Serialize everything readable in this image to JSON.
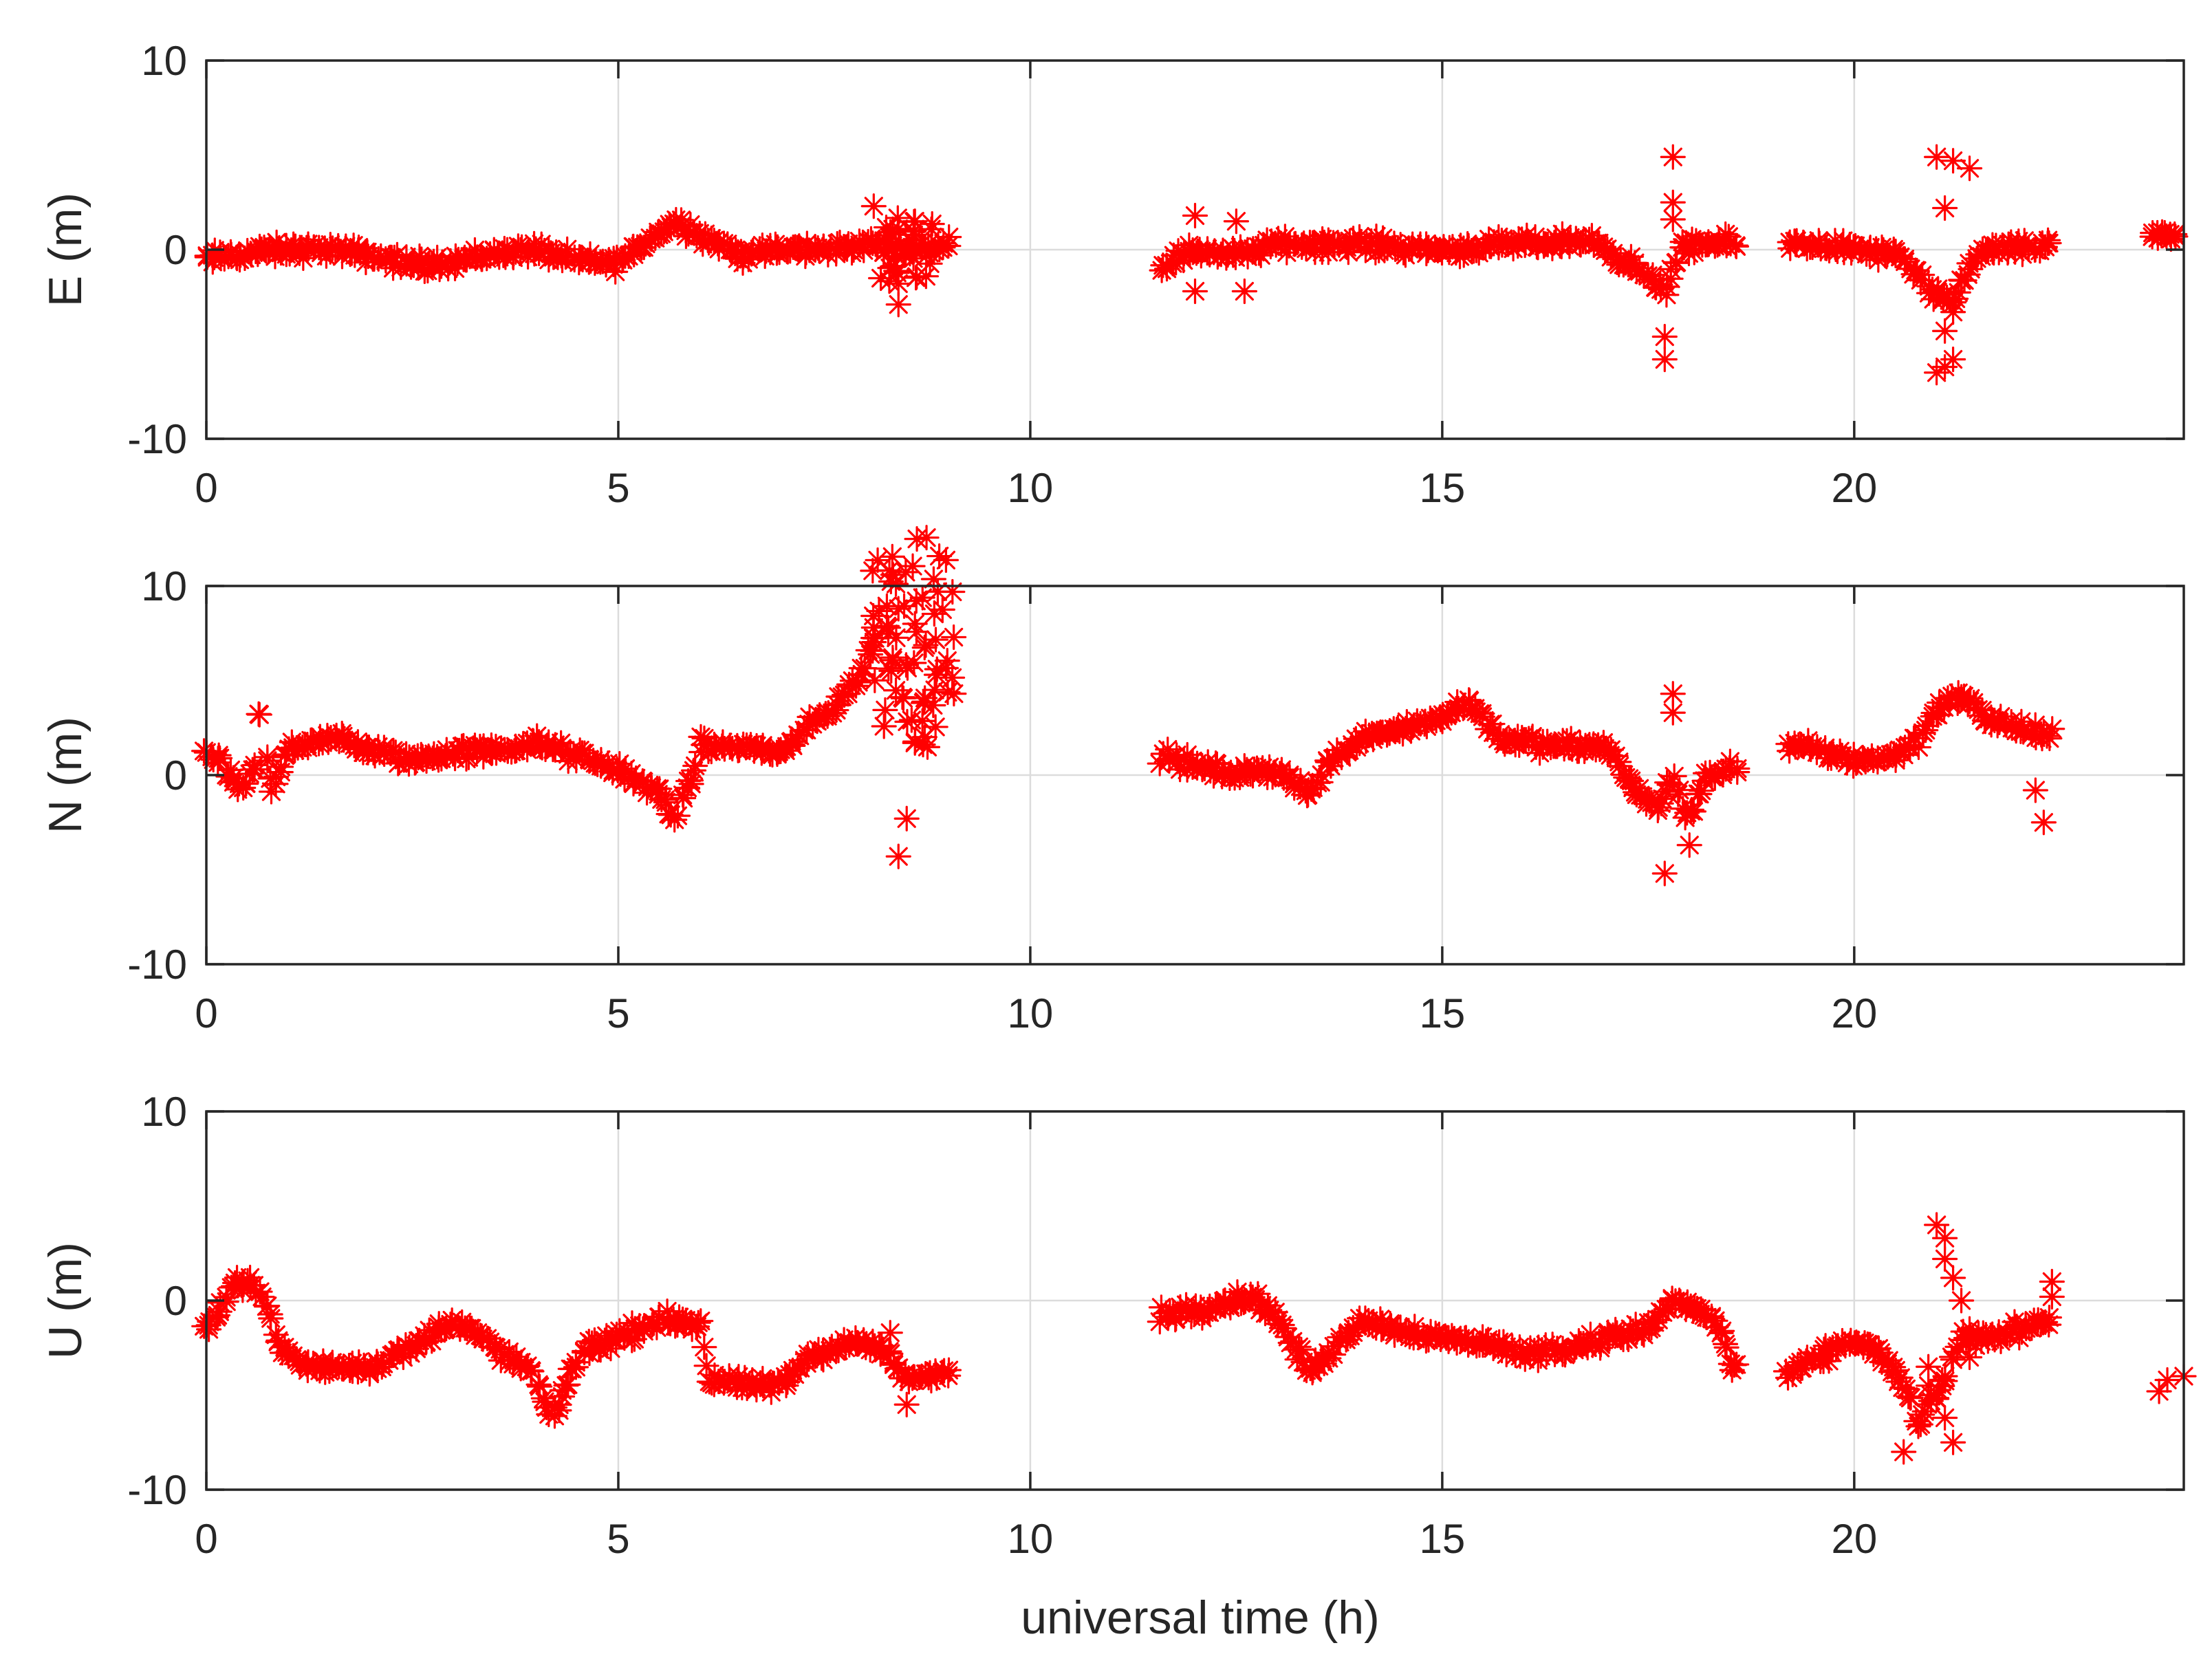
{
  "chart_data": {
    "type": "scatter",
    "marker": "asterisk",
    "marker_color": "#ff0000",
    "xlabel": "universal time (h)",
    "xlim": [
      0,
      24
    ],
    "x_ticks": [
      0,
      5,
      10,
      15,
      20
    ],
    "x_tick_labels": [
      "0",
      "5",
      "10",
      "15",
      "20"
    ],
    "y_ticks": [
      -10,
      0,
      10
    ],
    "y_tick_labels": [
      "-10",
      "0",
      "10"
    ],
    "grid": true,
    "panels": [
      {
        "id": "east",
        "ylabel": "E (m)",
        "ylim": [
          -10,
          10
        ],
        "trend": [
          [
            0,
            -0.5
          ],
          [
            0.5,
            -0.2
          ],
          [
            1,
            0
          ],
          [
            1.5,
            0
          ],
          [
            2,
            -0.3
          ],
          [
            2.5,
            -0.8
          ],
          [
            3,
            -0.6
          ],
          [
            3.5,
            -0.2
          ],
          [
            4,
            0
          ],
          [
            4.5,
            -0.6
          ],
          [
            5,
            -0.7
          ],
          [
            5.3,
            0.3
          ],
          [
            5.7,
            1.5
          ],
          [
            6,
            0.8
          ],
          [
            6.5,
            -0.3
          ],
          [
            7,
            0
          ],
          [
            7.5,
            0
          ],
          [
            8,
            0.3
          ],
          [
            8.5,
            0
          ],
          [
            9,
            0.3
          ]
        ],
        "trend_noise": 0.6,
        "spread": [
          [
            8.3,
            1.2
          ],
          [
            8.7,
            1.0
          ]
        ],
        "extra": [
          [
            8.1,
            2.3
          ],
          [
            8.4,
            -1.8
          ],
          [
            8.4,
            -2.9
          ],
          [
            8.6,
            1.5
          ],
          [
            17.8,
            4.9
          ],
          [
            17.7,
            -5.8
          ],
          [
            17.7,
            -4.6
          ],
          [
            17.8,
            2.5
          ],
          [
            17.8,
            1.6
          ],
          [
            21,
            4.9
          ],
          [
            21.2,
            4.7
          ],
          [
            21.4,
            4.3
          ],
          [
            21.1,
            2.2
          ],
          [
            21,
            -6.5
          ],
          [
            21.1,
            -6.2
          ],
          [
            21.2,
            -5.8
          ],
          [
            21.1,
            -4.3
          ],
          [
            21.2,
            -3.3
          ],
          [
            12,
            1.8
          ],
          [
            12,
            -2.2
          ],
          [
            12.5,
            1.5
          ],
          [
            12.6,
            -2.2
          ]
        ]
      },
      {
        "id": "north",
        "ylabel": "N (m)",
        "ylim": [
          -10,
          10
        ],
        "trend": [
          [
            0,
            1.3
          ],
          [
            0.2,
            0.5
          ],
          [
            0.4,
            -0.8
          ],
          [
            0.6,
            0.2
          ],
          [
            0.6,
            3.8
          ],
          [
            0.7,
            2.0
          ],
          [
            0.8,
            -1.0
          ],
          [
            1,
            1.5
          ],
          [
            1.5,
            2.0
          ],
          [
            2,
            1.3
          ],
          [
            2.5,
            0.8
          ],
          [
            3,
            1.2
          ],
          [
            3.5,
            1.3
          ],
          [
            4,
            1.7
          ],
          [
            4.5,
            1.0
          ],
          [
            5,
            0.3
          ],
          [
            5.5,
            -1.0
          ],
          [
            5.7,
            -2.3
          ],
          [
            5.9,
            0
          ],
          [
            6,
            1.5
          ],
          [
            6.5,
            1.5
          ],
          [
            7,
            1.2
          ],
          [
            7.3,
            2.5
          ],
          [
            7.6,
            3.5
          ],
          [
            7.9,
            5.0
          ],
          [
            8.1,
            7.0
          ]
        ],
        "trend_noise": 0.6,
        "spread": [
          [
            8.2,
            3.5
          ],
          [
            8.4,
            3.2
          ],
          [
            8.6,
            4.2
          ],
          [
            8.8,
            3.5
          ],
          [
            8.95,
            2.8
          ]
        ],
        "extra": [
          [
            8.1,
            7.8
          ],
          [
            8.4,
            -4.3
          ],
          [
            8.6,
            8.0
          ],
          [
            8.5,
            -2.3
          ],
          [
            17.7,
            -5.2
          ],
          [
            17.8,
            4.3
          ],
          [
            17.8,
            3.3
          ],
          [
            18,
            -3.7
          ],
          [
            22.3,
            -2.5
          ],
          [
            22.2,
            -0.8
          ]
        ]
      },
      {
        "id": "up",
        "ylabel": "U (m)",
        "ylim": [
          -10,
          10
        ],
        "trend": [
          [
            0,
            -1.5
          ],
          [
            0.2,
            0
          ],
          [
            0.4,
            1.2
          ],
          [
            0.7,
            0.2
          ],
          [
            0.9,
            -2.5
          ],
          [
            1.2,
            -3.5
          ],
          [
            2,
            -3.5
          ],
          [
            2.5,
            -2.5
          ],
          [
            3,
            -1.0
          ],
          [
            3.5,
            -2.5
          ],
          [
            4,
            -4.0
          ],
          [
            4.2,
            -6.5
          ],
          [
            4.4,
            -4.0
          ],
          [
            4.6,
            -2.5
          ],
          [
            5,
            -2.0
          ],
          [
            5.5,
            -1.0
          ],
          [
            6,
            -1.2
          ],
          [
            6.1,
            -4.2
          ],
          [
            6.5,
            -4.5
          ],
          [
            7,
            -4.5
          ],
          [
            7.3,
            -3.0
          ],
          [
            7.8,
            -2.2
          ],
          [
            8.2,
            -2.5
          ],
          [
            8.5,
            -4.2
          ],
          [
            9,
            -3.8
          ]
        ],
        "trend_noise": 0.6,
        "spread": [],
        "extra": [
          [
            8.5,
            -5.5
          ],
          [
            8.3,
            -1.7
          ],
          [
            21,
            4.0
          ],
          [
            21.1,
            3.3
          ],
          [
            21.1,
            2.2
          ],
          [
            21.2,
            1.2
          ],
          [
            21.3,
            0
          ],
          [
            21.4,
            -1.5
          ],
          [
            20.9,
            -4.5
          ],
          [
            21,
            -5.2
          ],
          [
            21.1,
            -6.2
          ],
          [
            21.2,
            -7.5
          ],
          [
            20.9,
            -3.5
          ],
          [
            21.4,
            -3.0
          ],
          [
            22.4,
            1.0
          ],
          [
            22.4,
            0.2
          ],
          [
            23.7,
            -4.8
          ],
          [
            23.8,
            -4.2
          ],
          [
            24,
            -4.0
          ],
          [
            20.6,
            -8.0
          ]
        ]
      }
    ],
    "shared_segments": [
      {
        "range": [
          11.6,
          18.6
        ],
        "panel_trends": {
          "east": [
            [
              11.6,
              -0.8
            ],
            [
              12,
              0
            ],
            [
              12.5,
              -0.3
            ],
            [
              13,
              0.3
            ],
            [
              14,
              0.3
            ],
            [
              15,
              0
            ],
            [
              16,
              0.3
            ],
            [
              16.8,
              0.5
            ],
            [
              17.2,
              -0.5
            ],
            [
              17.5,
              -1.5
            ],
            [
              17.7,
              -2.2
            ],
            [
              17.9,
              0
            ],
            [
              18.2,
              0.3
            ],
            [
              18.6,
              0.3
            ]
          ],
          "north": [
            [
              11.6,
              1.0
            ],
            [
              12,
              0.5
            ],
            [
              12.5,
              0
            ],
            [
              13,
              0.3
            ],
            [
              13.4,
              -1.0
            ],
            [
              13.6,
              0.5
            ],
            [
              14,
              2.0
            ],
            [
              14.5,
              2.5
            ],
            [
              15,
              3.0
            ],
            [
              15.3,
              4.0
            ],
            [
              15.7,
              2.0
            ],
            [
              16.3,
              1.5
            ],
            [
              17,
              1.5
            ],
            [
              17.3,
              -0.5
            ],
            [
              17.6,
              -2.0
            ],
            [
              17.8,
              0
            ],
            [
              18,
              -2.5
            ],
            [
              18.2,
              0
            ],
            [
              18.6,
              0.5
            ]
          ],
          "up": [
            [
              11.6,
              -0.8
            ],
            [
              12.2,
              -0.3
            ],
            [
              12.7,
              0.3
            ],
            [
              13,
              -1.0
            ],
            [
              13.4,
              -3.8
            ],
            [
              13.7,
              -2.5
            ],
            [
              14,
              -1.0
            ],
            [
              14.5,
              -1.5
            ],
            [
              15,
              -2.0
            ],
            [
              15.5,
              -2.2
            ],
            [
              16,
              -2.8
            ],
            [
              16.5,
              -2.5
            ],
            [
              17,
              -2.0
            ],
            [
              17.5,
              -1.5
            ],
            [
              17.8,
              0
            ],
            [
              18.1,
              -0.5
            ],
            [
              18.4,
              -1.5
            ],
            [
              18.5,
              -3.5
            ]
          ]
        }
      },
      {
        "range": [
          19.2,
          22.4
        ],
        "panel_trends": {
          "east": [
            [
              19.2,
              0.3
            ],
            [
              19.6,
              0.3
            ],
            [
              20,
              0
            ],
            [
              20.5,
              -0.3
            ],
            [
              20.8,
              -1.5
            ],
            [
              21,
              -2.5
            ],
            [
              21.2,
              -2.8
            ],
            [
              21.4,
              -0.8
            ],
            [
              21.6,
              0
            ],
            [
              22,
              0
            ],
            [
              22.4,
              0.2
            ]
          ],
          "north": [
            [
              19.2,
              1.5
            ],
            [
              19.6,
              1.3
            ],
            [
              20,
              0.8
            ],
            [
              20.5,
              1.0
            ],
            [
              20.8,
              2.0
            ],
            [
              21,
              3.5
            ],
            [
              21.3,
              4.2
            ],
            [
              21.6,
              3.0
            ],
            [
              22,
              2.5
            ],
            [
              22.3,
              2.0
            ]
          ],
          "up": [
            [
              19.2,
              -4.0
            ],
            [
              19.6,
              -3.0
            ],
            [
              20,
              -2.0
            ],
            [
              20.3,
              -2.8
            ],
            [
              20.6,
              -4.5
            ],
            [
              20.8,
              -6.5
            ],
            [
              21,
              -5.0
            ],
            [
              21.3,
              -2.0
            ],
            [
              21.6,
              -2.0
            ],
            [
              22,
              -1.5
            ],
            [
              22.3,
              -1.0
            ]
          ]
        }
      },
      {
        "range": [
          23.6,
          23.9
        ],
        "panel_trends": {
          "east": [
            [
              23.6,
              0.8
            ],
            [
              23.9,
              0.8
            ]
          ]
        }
      }
    ]
  }
}
